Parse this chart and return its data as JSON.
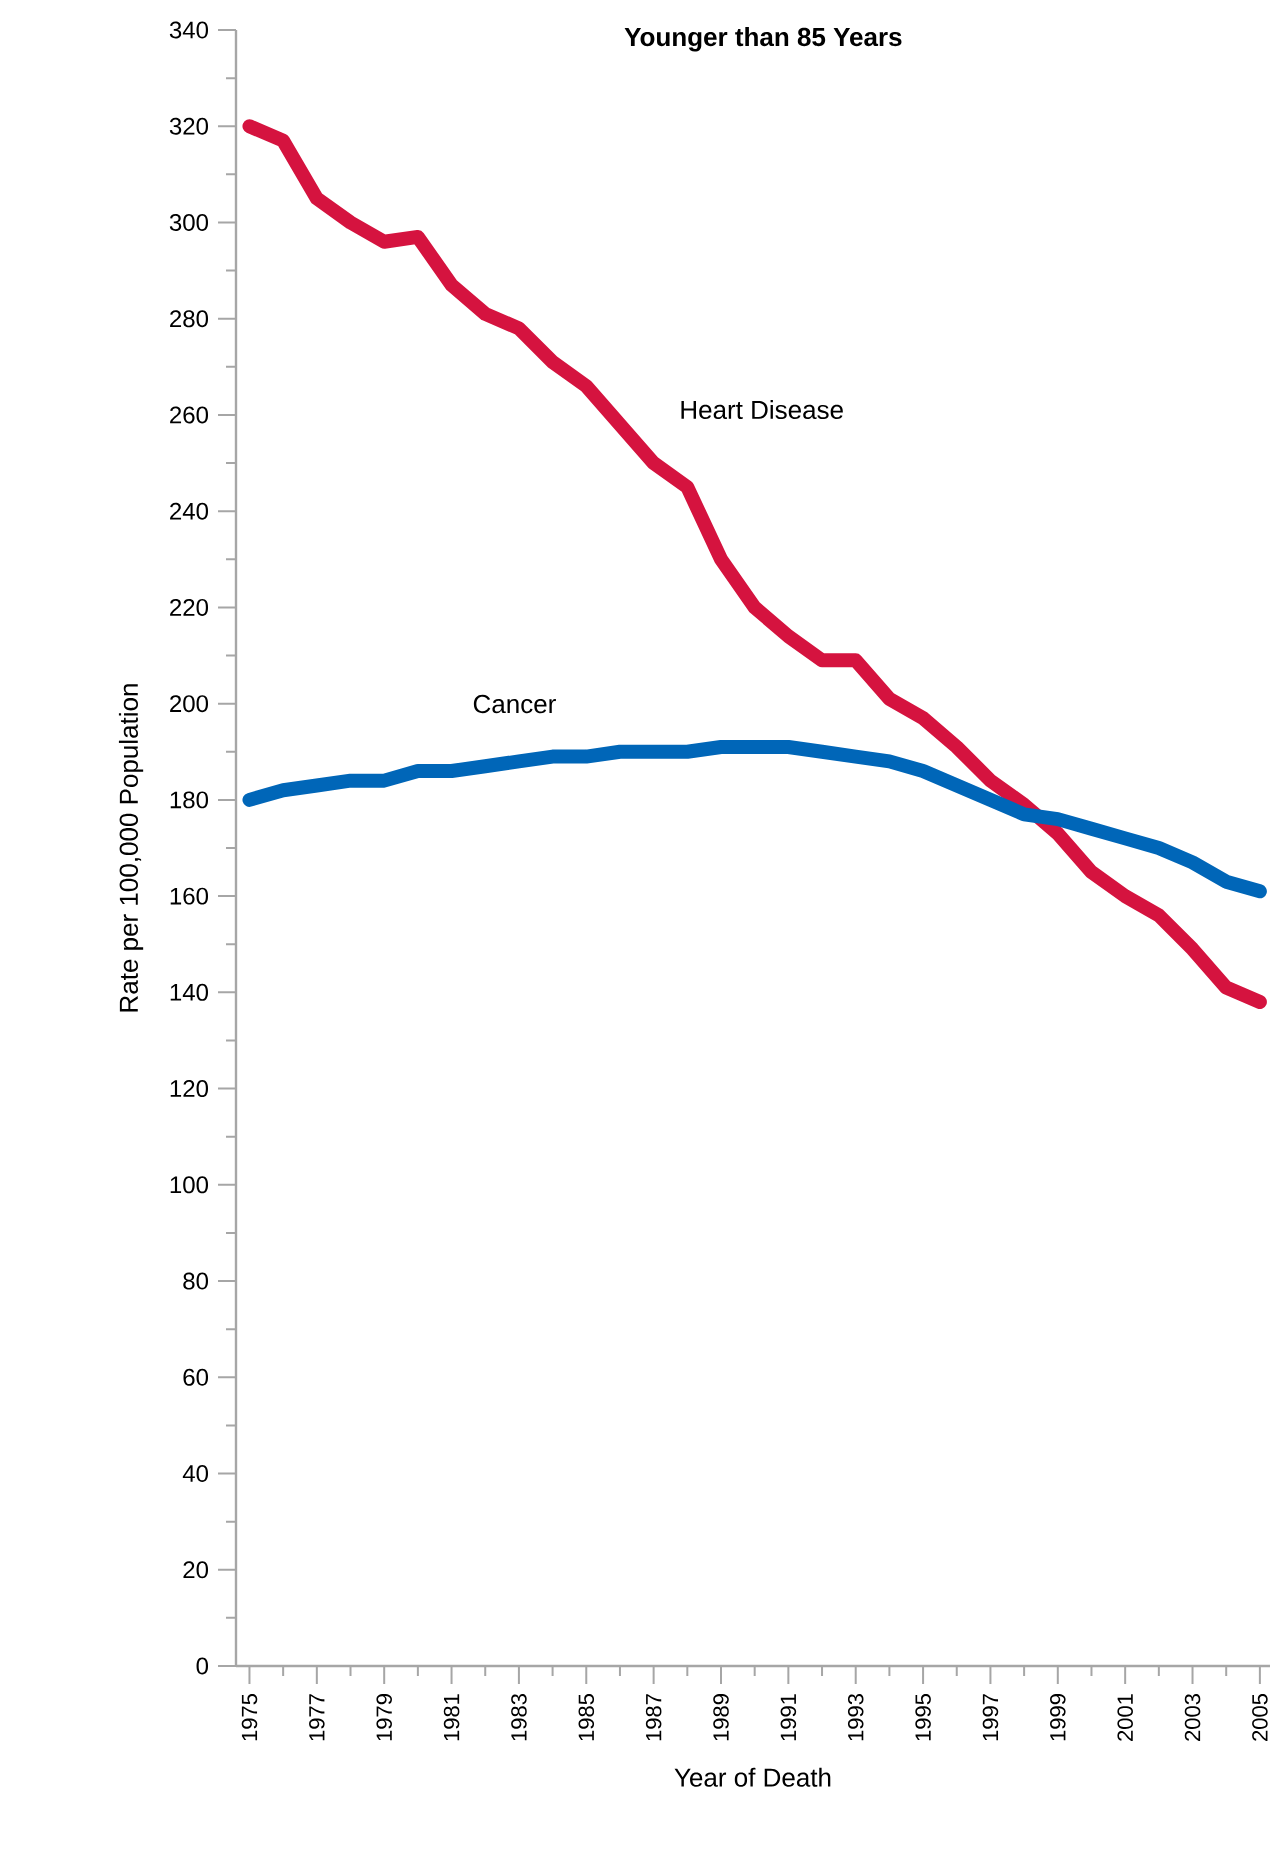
{
  "chart_data": {
    "type": "line",
    "title": "Younger than 85 Years",
    "xlabel": "Year of Death",
    "ylabel": "Rate per 100,000 Population",
    "x": [
      1975,
      1976,
      1977,
      1978,
      1979,
      1980,
      1981,
      1982,
      1983,
      1984,
      1985,
      1986,
      1987,
      1988,
      1989,
      1990,
      1991,
      1992,
      1993,
      1994,
      1995,
      1996,
      1997,
      1998,
      1999,
      2000,
      2001,
      2002,
      2003,
      2004,
      2005
    ],
    "series": [
      {
        "name": "Heart Disease",
        "color": "#d5133f",
        "values": [
          320,
          317,
          305,
          300,
          296,
          297,
          287,
          281,
          278,
          271,
          266,
          258,
          250,
          245,
          230,
          220,
          214,
          209,
          209,
          201,
          197,
          191,
          184,
          179,
          173,
          165,
          160,
          156,
          149,
          141,
          138
        ]
      },
      {
        "name": "Cancer",
        "color": "#0066b8",
        "values": [
          180,
          182,
          183,
          184,
          184,
          186,
          186,
          187,
          188,
          189,
          189,
          190,
          190,
          190,
          191,
          191,
          191,
          190,
          189,
          188,
          186,
          183,
          180,
          177,
          176,
          174,
          172,
          170,
          167,
          163,
          161
        ]
      }
    ],
    "xlim": [
      1974.6,
      2005.3
    ],
    "ylim": [
      0,
      340
    ],
    "xticks": [
      1975,
      {
        "value": 1976,
        "label": null
      },
      1977,
      {
        "value": 1978,
        "label": null
      },
      1979,
      {
        "value": 1980,
        "label": null
      },
      1981,
      {
        "value": 1982,
        "label": null
      },
      1983,
      {
        "value": 1984,
        "label": null
      },
      1985,
      {
        "value": 1986,
        "label": null
      },
      1987,
      {
        "value": 1988,
        "label": null
      },
      1989,
      {
        "value": 1990,
        "label": null
      },
      1991,
      {
        "value": 1992,
        "label": null
      },
      1993,
      {
        "value": 1994,
        "label": null
      },
      1995,
      {
        "value": 1996,
        "label": null
      },
      1997,
      {
        "value": 1998,
        "label": null
      },
      1999,
      {
        "value": 2000,
        "label": null
      },
      2001,
      {
        "value": 2002,
        "label": null
      },
      2003,
      {
        "value": 2004,
        "label": null
      },
      2005
    ],
    "yticks": [
      0,
      {
        "value": 10,
        "label": null
      },
      20,
      {
        "value": 30,
        "label": null
      },
      40,
      {
        "value": 50,
        "label": null
      },
      60,
      {
        "value": 70,
        "label": null
      },
      80,
      {
        "value": 90,
        "label": null
      },
      100,
      {
        "value": 110,
        "label": null
      },
      120,
      {
        "value": 130,
        "label": null
      },
      140,
      {
        "value": 150,
        "label": null
      },
      160,
      {
        "value": 170,
        "label": null
      },
      180,
      {
        "value": 190,
        "label": null
      },
      200,
      {
        "value": 210,
        "label": null
      },
      220,
      {
        "value": 230,
        "label": null
      },
      240,
      {
        "value": 250,
        "label": null
      },
      260,
      {
        "value": 270,
        "label": null
      },
      280,
      {
        "value": 290,
        "label": null
      },
      300,
      {
        "value": 310,
        "label": null
      },
      320,
      {
        "value": 330,
        "label": null
      },
      340
    ],
    "marker": "none",
    "line_style": "solid"
  }
}
